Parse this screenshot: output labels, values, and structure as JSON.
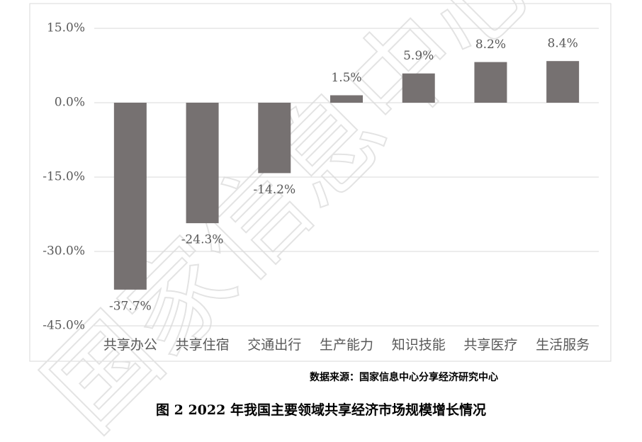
{
  "chart_data": {
    "type": "bar",
    "categories": [
      "共享办公",
      "共享住宿",
      "交通出行",
      "生产能力",
      "知识技能",
      "共享医疗",
      "生活服务"
    ],
    "values": [
      -37.7,
      -24.3,
      -14.2,
      1.5,
      5.9,
      8.2,
      8.4
    ],
    "value_labels": [
      "-37.7%",
      "-24.3%",
      "-14.2%",
      "1.5%",
      "5.9%",
      "8.2%",
      "8.4%"
    ],
    "color": "#767171",
    "ylim": [
      -45,
      15
    ],
    "yticks": [
      {
        "value": 15,
        "label": "15.0%"
      },
      {
        "value": 0,
        "label": "0.0%"
      },
      {
        "value": -15,
        "label": "-15.0%"
      },
      {
        "value": -30,
        "label": "-30.0%"
      },
      {
        "value": -45,
        "label": "-45.0%"
      }
    ],
    "grid": true,
    "source": "数据来源：国家信息中心分享经济研究中心",
    "caption": "图 2  2022 年我国主要领域共享经济市场规模增长情况",
    "watermark": "国家信息中心"
  }
}
